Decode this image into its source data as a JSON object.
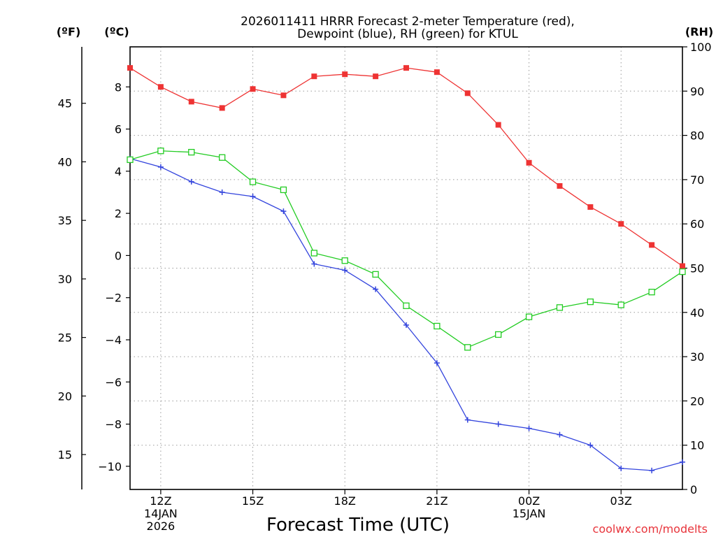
{
  "chart_data": {
    "type": "line",
    "title_line1": "2026011411 HRRR Forecast 2-meter Temperature (red),",
    "title_line2": "Dewpoint (blue), RH (green) for KTUL",
    "xlabel": "Forecast Time (UTC)",
    "credit": "coolwx.com/modelts",
    "unit_left_outer": "(ºF)",
    "unit_left_inner": "(ºC)",
    "unit_right": "(RH)",
    "x_hours": [
      11,
      12,
      13,
      14,
      15,
      16,
      17,
      18,
      19,
      20,
      21,
      22,
      23,
      24,
      25,
      26,
      27,
      28,
      29
    ],
    "xlim": [
      11,
      29
    ],
    "x_ticks": [
      {
        "hour": 12,
        "lines": [
          "12Z",
          "14JAN",
          "2026"
        ]
      },
      {
        "hour": 15,
        "lines": [
          "15Z"
        ]
      },
      {
        "hour": 18,
        "lines": [
          "18Z"
        ]
      },
      {
        "hour": 21,
        "lines": [
          "21Z"
        ]
      },
      {
        "hour": 24,
        "lines": [
          "00Z",
          "15JAN"
        ]
      },
      {
        "hour": 27,
        "lines": [
          "03Z"
        ]
      }
    ],
    "celsius_axis": {
      "ylim": [
        -11.1,
        9.9
      ],
      "ticks": [
        8,
        6,
        4,
        2,
        0,
        -2,
        -4,
        -6,
        -8,
        -10
      ],
      "tick_labels": [
        "8",
        "6",
        "4",
        "2",
        "0",
        "−2",
        "−4",
        "−6",
        "−8",
        "−10"
      ]
    },
    "fahrenheit_axis": {
      "ticks": [
        45,
        40,
        35,
        30,
        25,
        20,
        15
      ],
      "tick_labels": [
        "45",
        "40",
        "35",
        "30",
        "25",
        "20",
        "15"
      ]
    },
    "rh_axis": {
      "ylim": [
        0,
        100
      ],
      "ticks": [
        100,
        90,
        80,
        70,
        60,
        50,
        40,
        30,
        20,
        10,
        0
      ],
      "tick_labels": [
        "100",
        "90",
        "80",
        "70",
        "60",
        "50",
        "40",
        "30",
        "20",
        "10",
        "0"
      ]
    },
    "series": [
      {
        "name": "2-meter Temperature",
        "axis": "celsius",
        "color": "#ee3333",
        "marker": "filled-square",
        "values": [
          8.9,
          8.0,
          7.3,
          7.0,
          7.9,
          7.6,
          8.5,
          8.6,
          8.5,
          8.9,
          8.7,
          7.7,
          6.2,
          4.4,
          3.3,
          2.3,
          1.5,
          0.5,
          -0.5
        ]
      },
      {
        "name": "Dewpoint",
        "axis": "celsius",
        "color": "#3344dd",
        "marker": "plus",
        "values": [
          4.6,
          4.2,
          3.5,
          3.0,
          2.8,
          2.1,
          -0.4,
          -0.7,
          -1.6,
          -3.3,
          -5.1,
          -7.8,
          -8.0,
          -8.2,
          -8.5,
          -9.0,
          -10.1,
          -10.2,
          -9.8
        ]
      },
      {
        "name": "Relative Humidity",
        "axis": "rh",
        "color": "#22cc22",
        "marker": "open-square",
        "values": [
          74.5,
          76.5,
          76.2,
          75.0,
          69.5,
          67.7,
          53.4,
          51.7,
          48.6,
          41.5,
          36.9,
          32.1,
          35.0,
          39.0,
          41.1,
          42.4,
          41.7,
          44.6,
          49.2
        ]
      }
    ]
  }
}
